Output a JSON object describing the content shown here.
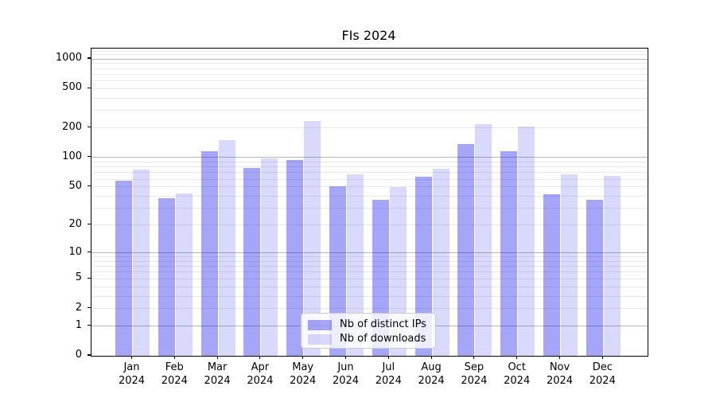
{
  "chart_data": {
    "type": "bar",
    "title": "FIs 2024",
    "yscale": "log1p-symlog",
    "ylim": [
      0,
      1272
    ],
    "yticks": [
      0,
      1,
      2,
      5,
      10,
      20,
      50,
      100,
      200,
      500,
      1000
    ],
    "grid": "on-major-and-minor",
    "legend_position": "lower center",
    "categories": [
      "Jan",
      "Feb",
      "Mar",
      "Apr",
      "May",
      "Jun",
      "Jul",
      "Aug",
      "Sep",
      "Oct",
      "Nov",
      "Dec"
    ],
    "year_label": "2024",
    "series": [
      {
        "name": "Nb of distinct IPs",
        "color": "rgba(0,0,235,0.35)",
        "values": [
          58,
          38,
          115,
          78,
          95,
          51,
          37,
          64,
          136,
          116,
          42,
          37
        ]
      },
      {
        "name": "Nb of downloads",
        "color": "rgba(0,0,235,0.15)",
        "values": [
          76,
          43,
          150,
          97,
          234,
          67,
          50,
          77,
          219,
          205,
          67,
          65
        ]
      }
    ],
    "colors": {
      "grid_major": "#b8b8b8",
      "grid_minor": "#e9e9e9",
      "spine": "#000000",
      "text": "#000000"
    }
  }
}
